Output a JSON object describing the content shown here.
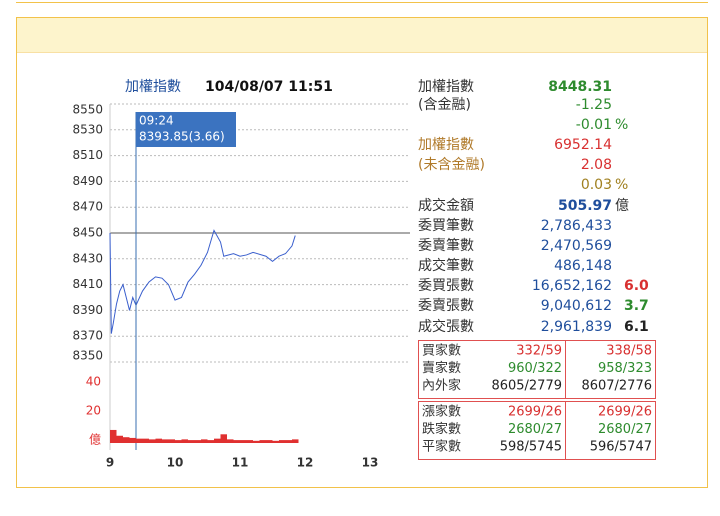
{
  "chart_data": [
    {
      "type": "line",
      "title": "加權指數",
      "subtitle": "104/08/07 11:51",
      "x": [
        9.0,
        9.02,
        9.05,
        9.1,
        9.15,
        9.2,
        9.25,
        9.3,
        9.35,
        9.4,
        9.5,
        9.6,
        9.7,
        9.8,
        9.9,
        10.0,
        10.1,
        10.2,
        10.3,
        10.4,
        10.5,
        10.6,
        10.7,
        10.75,
        10.9,
        11.0,
        11.1,
        11.2,
        11.4,
        11.5,
        11.6,
        11.7,
        11.8,
        11.85
      ],
      "series": [
        {
          "color": "#3a5fcd",
          "values": [
            8450,
            8372,
            8380,
            8395,
            8405,
            8410,
            8400,
            8390,
            8400,
            8394,
            8405,
            8412,
            8416,
            8415,
            8410,
            8398,
            8400,
            8412,
            8418,
            8425,
            8435,
            8452,
            8443,
            8432,
            8434,
            8432,
            8433,
            8435,
            8432,
            8428,
            8432,
            8434,
            8440,
            8448
          ]
        }
      ],
      "xlim": [
        9,
        13.5
      ],
      "xticks": [
        9,
        10,
        11,
        12,
        13
      ],
      "ylim": [
        8350,
        8550
      ],
      "yticks": [
        8350,
        8370,
        8390,
        8410,
        8430,
        8450,
        8470,
        8490,
        8510,
        8530,
        8550
      ],
      "grid": true,
      "reference": 8450,
      "annotation": {
        "time": "09:24",
        "text": "8393.85(3.66)",
        "x": 9.4
      }
    },
    {
      "type": "bar",
      "color": "#e03030",
      "x": [
        9.0,
        9.1,
        9.2,
        9.3,
        9.4,
        9.5,
        9.6,
        9.7,
        9.8,
        9.9,
        10.0,
        10.1,
        10.2,
        10.3,
        10.4,
        10.5,
        10.6,
        10.7,
        10.8,
        10.9,
        11.0,
        11.1,
        11.2,
        11.3,
        11.4,
        11.5,
        11.6,
        11.7,
        11.8
      ],
      "values": [
        9,
        5,
        4,
        3.5,
        3,
        3,
        2.5,
        3,
        2.5,
        2.5,
        2,
        2.5,
        2,
        2,
        2.5,
        2,
        3,
        6,
        2.5,
        2,
        2,
        2,
        1.5,
        2,
        2,
        1.5,
        2,
        2,
        2.5
      ],
      "xlim": [
        9,
        13.5
      ],
      "ylim": [
        0,
        50
      ],
      "yticks": [
        {
          "value": 0,
          "label": "億"
        },
        20,
        40
      ]
    }
  ],
  "panel": [
    {
      "label": "加權指數",
      "value": "8448.31",
      "color": "#2e8b2e",
      "bold": true
    },
    {
      "label": "(含金融)",
      "value": "-1.25",
      "color": "#2e8b2e"
    },
    {
      "value": "-0.01",
      "unit": "%",
      "color": "#2e8b2e"
    },
    {
      "label": "加權指數",
      "value": "6952.14",
      "color": "#d83030",
      "label_color": "#b07a2a"
    },
    {
      "label": "(未含金融)",
      "value": "2.08",
      "color": "#d83030",
      "label_color": "#b07a2a"
    },
    {
      "value": "0.03",
      "unit": "%",
      "color": "#a08020"
    },
    {
      "label": "成交金額",
      "value": "505.97",
      "unit": "億",
      "color": "#1f4e9c",
      "bold": true
    },
    {
      "label": "委買筆數",
      "value": "2,786,433",
      "color": "#1f4e9c"
    },
    {
      "label": "委賣筆數",
      "value": "2,470,569",
      "color": "#1f4e9c"
    },
    {
      "label": "成交筆數",
      "value": "486,148",
      "color": "#1f4e9c"
    },
    {
      "label": "委買張數",
      "value": "16,652,162",
      "color": "#1f4e9c",
      "extra": "6.0",
      "extra_color": "#d83030"
    },
    {
      "label": "委賣張數",
      "value": "9,040,612",
      "color": "#1f4e9c",
      "extra": "3.7",
      "extra_color": "#2e8b2e"
    },
    {
      "label": "成交張數",
      "value": "2,961,839",
      "color": "#1f4e9c",
      "extra": "6.1",
      "extra_color": "#222"
    }
  ],
  "breadth": [
    [
      [
        "買家數",
        "332/59",
        "338/58",
        "#d83030"
      ],
      [
        "賣家數",
        "960/322",
        "958/323",
        "#2e8b2e"
      ],
      [
        "內外家",
        "8605/2779",
        "8607/2776",
        "#222"
      ]
    ],
    [
      [
        "漲家數",
        "2699/26",
        "2699/26",
        "#d83030"
      ],
      [
        "跌家數",
        "2680/27",
        "2680/27",
        "#2e8b2e"
      ],
      [
        "平家數",
        "598/5745",
        "596/5747",
        "#222"
      ]
    ]
  ]
}
